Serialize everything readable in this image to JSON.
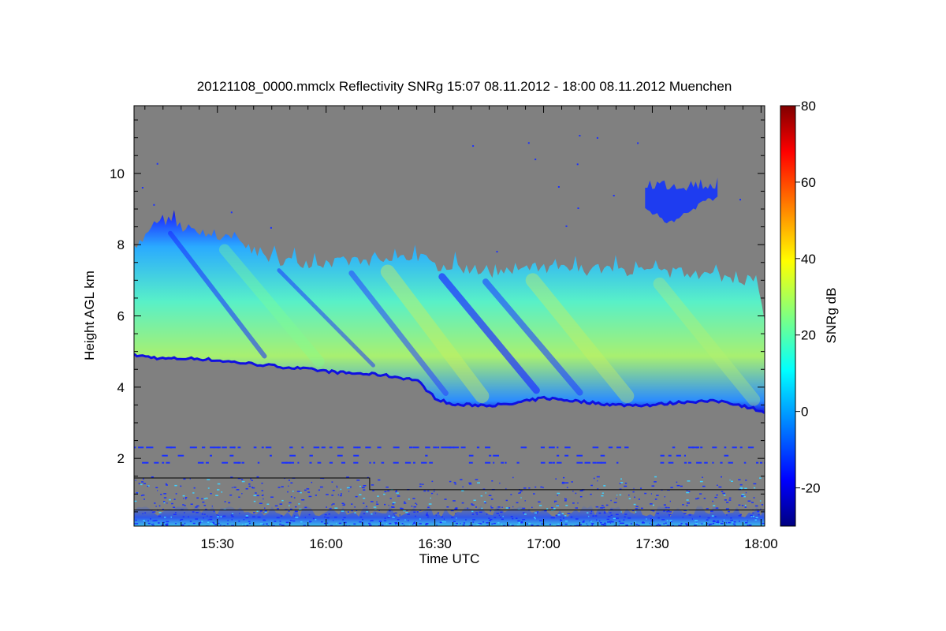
{
  "chart_data": {
    "type": "heatmap",
    "title": "20121108_0000.mmclx Reflectivity SNRg   15:07 08.11.2012 - 18:00 08.11.2012 Muenchen",
    "xlabel": "Time UTC",
    "ylabel": "Height AGL km",
    "colorbar_label": "SNRg dB",
    "x_range_minutes_utc": [
      907,
      1081
    ],
    "y_range_km": [
      0.1,
      11.9
    ],
    "x_ticks": [
      {
        "value": 930,
        "label": "15:30"
      },
      {
        "value": 960,
        "label": "16:00"
      },
      {
        "value": 990,
        "label": "16:30"
      },
      {
        "value": 1020,
        "label": "17:00"
      },
      {
        "value": 1050,
        "label": "17:30"
      },
      {
        "value": 1080,
        "label": "18:00"
      }
    ],
    "y_ticks": [
      {
        "value": 2,
        "label": "2"
      },
      {
        "value": 4,
        "label": "4"
      },
      {
        "value": 6,
        "label": "6"
      },
      {
        "value": 8,
        "label": "8"
      },
      {
        "value": 10,
        "label": "10"
      }
    ],
    "colorbar_range_db": [
      -30,
      80
    ],
    "colorbar_ticks": [
      {
        "value": -20,
        "label": "-20"
      },
      {
        "value": 0,
        "label": "0"
      },
      {
        "value": 20,
        "label": "20"
      },
      {
        "value": 40,
        "label": "40"
      },
      {
        "value": 60,
        "label": "60"
      },
      {
        "value": 80,
        "label": "80"
      }
    ],
    "background_color": "#808080",
    "colormap": [
      "#000080",
      "#0000ff",
      "#0080ff",
      "#00ffff",
      "#80ff80",
      "#ffff00",
      "#ff8000",
      "#ff0000",
      "#800000"
    ],
    "cloud_layer": {
      "time": [
        907,
        915,
        925,
        935,
        945,
        955,
        965,
        975,
        985,
        990,
        995,
        1000,
        1010,
        1015,
        1020,
        1030,
        1040,
        1050,
        1060,
        1070,
        1078,
        1081
      ],
      "base_km": [
        4.9,
        4.8,
        4.8,
        4.7,
        4.6,
        4.5,
        4.4,
        4.35,
        4.2,
        3.7,
        3.5,
        3.5,
        3.5,
        3.6,
        3.7,
        3.6,
        3.5,
        3.5,
        3.6,
        3.6,
        3.4,
        3.3
      ],
      "top_km": [
        7.9,
        8.7,
        8.3,
        8.1,
        7.6,
        7.5,
        7.5,
        7.5,
        7.7,
        7.4,
        7.4,
        7.3,
        7.2,
        7.3,
        7.3,
        7.3,
        7.3,
        7.2,
        7.2,
        7.1,
        7.0,
        6.0
      ],
      "peak_snr_db": [
        8,
        12,
        18,
        20,
        18,
        20,
        22,
        25,
        28,
        30,
        28,
        25,
        22,
        28,
        30,
        25,
        22,
        25,
        28,
        30,
        28,
        20
      ]
    },
    "upper_patch": {
      "time": [
        1048,
        1068
      ],
      "base_km": 8.5,
      "top_km": 9.9,
      "snr_db": -12
    },
    "threshold_line": {
      "time": [
        907,
        972,
        972,
        1081
      ],
      "height_km": [
        1.45,
        1.45,
        1.12,
        1.12
      ]
    },
    "ground_clutter_top_km": 0.7
  }
}
